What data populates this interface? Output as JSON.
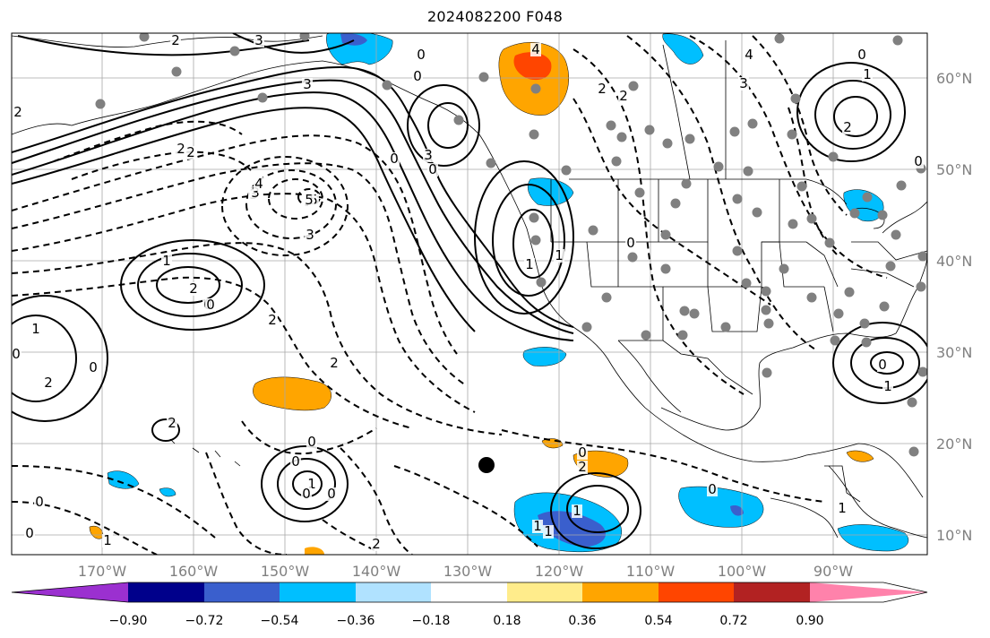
{
  "title": "2024082200 F048",
  "lon_labels": [
    "170°W",
    "160°W",
    "150°W",
    "140°W",
    "130°W",
    "120°W",
    "110°W",
    "100°W",
    "90°W"
  ],
  "lat_labels": [
    "60°N",
    "50°N",
    "40°N",
    "30°N",
    "20°N",
    "10°N"
  ],
  "colorbar": {
    "ticks": [
      "−0.90",
      "−0.72",
      "−0.54",
      "−0.36",
      "−0.18",
      "0.18",
      "0.36",
      "0.54",
      "0.72",
      "0.90"
    ],
    "colors": [
      "#9b30d0",
      "#00008b",
      "#3a5fcd",
      "#00bfff",
      "#b0e2ff",
      "#ffffff",
      "#ffec8b",
      "#ffa500",
      "#ff4500",
      "#b22222",
      "#ff82ab"
    ]
  },
  "contour_labels": [
    "3",
    "2",
    "0",
    "0",
    "3",
    "4",
    "2",
    "2",
    "2",
    "3",
    "0",
    "2",
    "2",
    "3",
    "1",
    "4",
    "0",
    "0",
    "3",
    "3",
    "5",
    "3",
    "2",
    "4",
    "5",
    "1",
    "2",
    "0",
    "0",
    "2",
    "2",
    "1",
    "0",
    "0",
    "2",
    "2",
    "0",
    "0",
    "1",
    "0",
    "0",
    "0",
    "1",
    "1",
    "1",
    "0",
    "2",
    "1",
    "1",
    "0",
    "0",
    "1",
    "0",
    "0",
    "1",
    "0",
    "1",
    "2"
  ]
}
